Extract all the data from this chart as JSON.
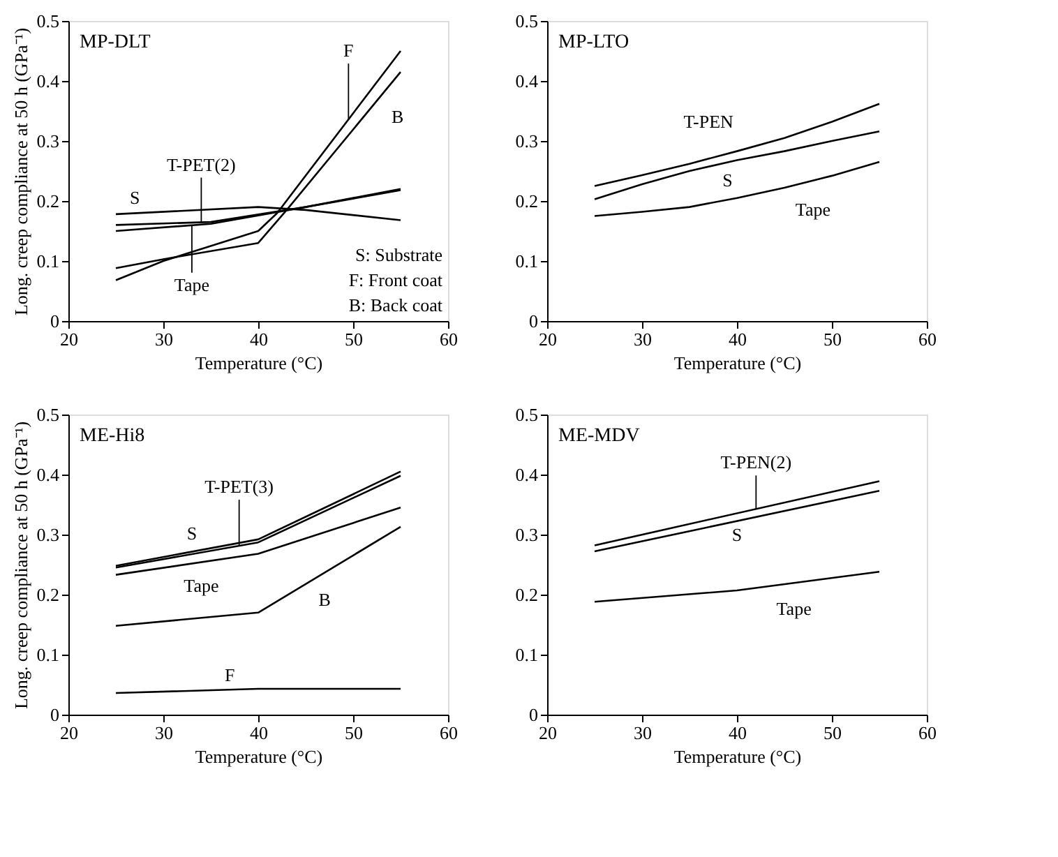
{
  "chart_data": [
    {
      "type": "line",
      "title": "MP-DLT",
      "xlabel": "Temperature (°C)",
      "ylabel": "Long. creep compliance at 50 h (GPa⁻¹)",
      "xlim": [
        20,
        60
      ],
      "ylim": [
        0,
        0.5
      ],
      "xticks": [
        20,
        30,
        40,
        50,
        60
      ],
      "yticks": [
        0,
        0.1,
        0.2,
        0.3,
        0.4,
        0.5
      ],
      "grid": false,
      "marker": "none",
      "line_style": "solid",
      "series": [
        {
          "name": "S",
          "color": "#000000",
          "x": [
            25,
            40,
            45,
            55
          ],
          "values": [
            0.178,
            0.19,
            0.185,
            0.168
          ]
        },
        {
          "name": "T-PET(2)",
          "color": "#000000",
          "x": [
            25,
            35,
            45,
            55
          ],
          "values": [
            0.16,
            0.165,
            0.19,
            0.22
          ]
        },
        {
          "name": "Tape",
          "color": "#000000",
          "x": [
            25,
            35,
            45,
            55
          ],
          "values": [
            0.15,
            0.162,
            0.19,
            0.218
          ]
        },
        {
          "name": "F",
          "color": "#000000",
          "x": [
            25,
            30,
            40,
            42,
            55
          ],
          "values": [
            0.068,
            0.1,
            0.15,
            0.18,
            0.45
          ]
        },
        {
          "name": "B",
          "color": "#000000",
          "x": [
            25,
            30,
            40,
            43,
            55
          ],
          "values": [
            0.088,
            0.103,
            0.13,
            0.185,
            0.415
          ]
        }
      ],
      "annotations": [
        "S: Substrate",
        "F: Front coat",
        "B: Back coat"
      ]
    },
    {
      "type": "line",
      "title": "MP-LTO",
      "xlabel": "Temperature (°C)",
      "xlim": [
        20,
        60
      ],
      "ylim": [
        0,
        0.5
      ],
      "xticks": [
        20,
        30,
        40,
        50,
        60
      ],
      "yticks": [
        0,
        0.1,
        0.2,
        0.3,
        0.4,
        0.5
      ],
      "grid": false,
      "marker": "none",
      "line_style": "solid",
      "series": [
        {
          "name": "T-PEN",
          "color": "#000000",
          "x": [
            25,
            30,
            35,
            40,
            45,
            50,
            55
          ],
          "values": [
            0.225,
            0.243,
            0.262,
            0.283,
            0.305,
            0.332,
            0.362
          ]
        },
        {
          "name": "S",
          "color": "#000000",
          "x": [
            25,
            30,
            35,
            40,
            45,
            50,
            55
          ],
          "values": [
            0.203,
            0.228,
            0.25,
            0.268,
            0.283,
            0.3,
            0.316
          ]
        },
        {
          "name": "Tape",
          "color": "#000000",
          "x": [
            25,
            30,
            35,
            40,
            45,
            50,
            55
          ],
          "values": [
            0.175,
            0.182,
            0.19,
            0.205,
            0.222,
            0.242,
            0.265
          ]
        }
      ]
    },
    {
      "type": "line",
      "title": "ME-Hi8",
      "xlabel": "Temperature (°C)",
      "ylabel": "Long. creep compliance at 50 h (GPa⁻¹)",
      "xlim": [
        20,
        60
      ],
      "ylim": [
        0,
        0.5
      ],
      "xticks": [
        20,
        30,
        40,
        50,
        60
      ],
      "yticks": [
        0,
        0.1,
        0.2,
        0.3,
        0.4,
        0.5
      ],
      "grid": false,
      "marker": "none",
      "line_style": "solid",
      "series": [
        {
          "name": "S",
          "color": "#000000",
          "x": [
            25,
            40,
            55
          ],
          "values": [
            0.248,
            0.292,
            0.405
          ]
        },
        {
          "name": "T-PET(3)",
          "color": "#000000",
          "x": [
            25,
            40,
            55
          ],
          "values": [
            0.245,
            0.287,
            0.398
          ]
        },
        {
          "name": "Tape",
          "color": "#000000",
          "x": [
            25,
            40,
            55
          ],
          "values": [
            0.233,
            0.268,
            0.345
          ]
        },
        {
          "name": "B",
          "color": "#000000",
          "x": [
            25,
            40,
            55
          ],
          "values": [
            0.148,
            0.17,
            0.313
          ]
        },
        {
          "name": "F",
          "color": "#000000",
          "x": [
            25,
            40,
            55
          ],
          "values": [
            0.036,
            0.043,
            0.043
          ]
        }
      ]
    },
    {
      "type": "line",
      "title": "ME-MDV",
      "xlabel": "Temperature (°C)",
      "xlim": [
        20,
        60
      ],
      "ylim": [
        0,
        0.5
      ],
      "xticks": [
        20,
        30,
        40,
        50,
        60
      ],
      "yticks": [
        0,
        0.1,
        0.2,
        0.3,
        0.4,
        0.5
      ],
      "grid": false,
      "marker": "none",
      "line_style": "solid",
      "series": [
        {
          "name": "T-PEN(2)",
          "color": "#000000",
          "x": [
            25,
            55
          ],
          "values": [
            0.282,
            0.389
          ]
        },
        {
          "name": "S",
          "color": "#000000",
          "x": [
            25,
            55
          ],
          "values": [
            0.272,
            0.373
          ]
        },
        {
          "name": "Tape",
          "color": "#000000",
          "x": [
            25,
            40,
            55
          ],
          "values": [
            0.188,
            0.207,
            0.238
          ]
        }
      ]
    }
  ]
}
